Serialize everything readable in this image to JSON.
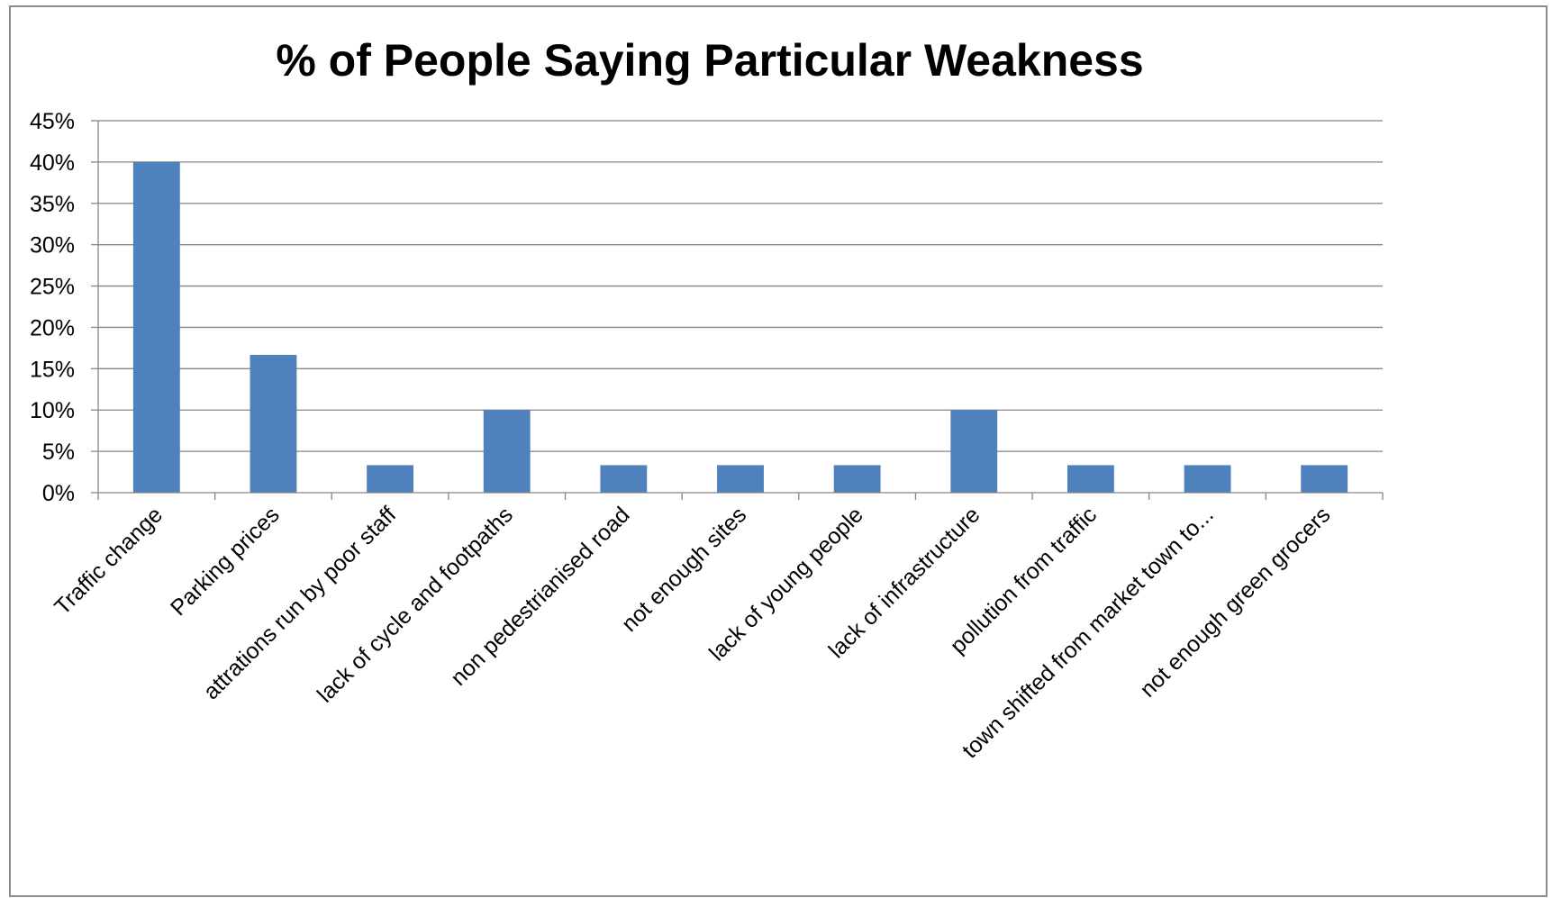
{
  "chart_data": {
    "type": "bar",
    "title": "% of People Saying Particular Weakness",
    "xlabel": "",
    "ylabel": "",
    "categories": [
      "Traffic change",
      "Parking prices",
      "attrations run by poor staff",
      "lack of cycle and footpaths",
      "non pedestrianised road",
      "not enough sites",
      "lack of young people",
      "lack of infrastructure",
      "pollution from traffic",
      "town shifted from market town to...",
      "not enough green grocers"
    ],
    "values": [
      0.4,
      0.1667,
      0.0333,
      0.1,
      0.0333,
      0.0333,
      0.0333,
      0.1,
      0.0333,
      0.0333,
      0.0333
    ],
    "ylim": [
      0,
      0.45
    ],
    "ytick_values": [
      0,
      0.05,
      0.1,
      0.15,
      0.2,
      0.25,
      0.3,
      0.35,
      0.4,
      0.45
    ],
    "ytick_labels": [
      "0%",
      "5%",
      "10%",
      "15%",
      "20%",
      "25%",
      "30%",
      "35%",
      "40%",
      "45%"
    ],
    "grid": true,
    "legend": "none",
    "colors": {
      "bar": "#4F81BD",
      "grid": "#868686",
      "axis": "#868686",
      "frame": "#8C8C8C"
    }
  }
}
